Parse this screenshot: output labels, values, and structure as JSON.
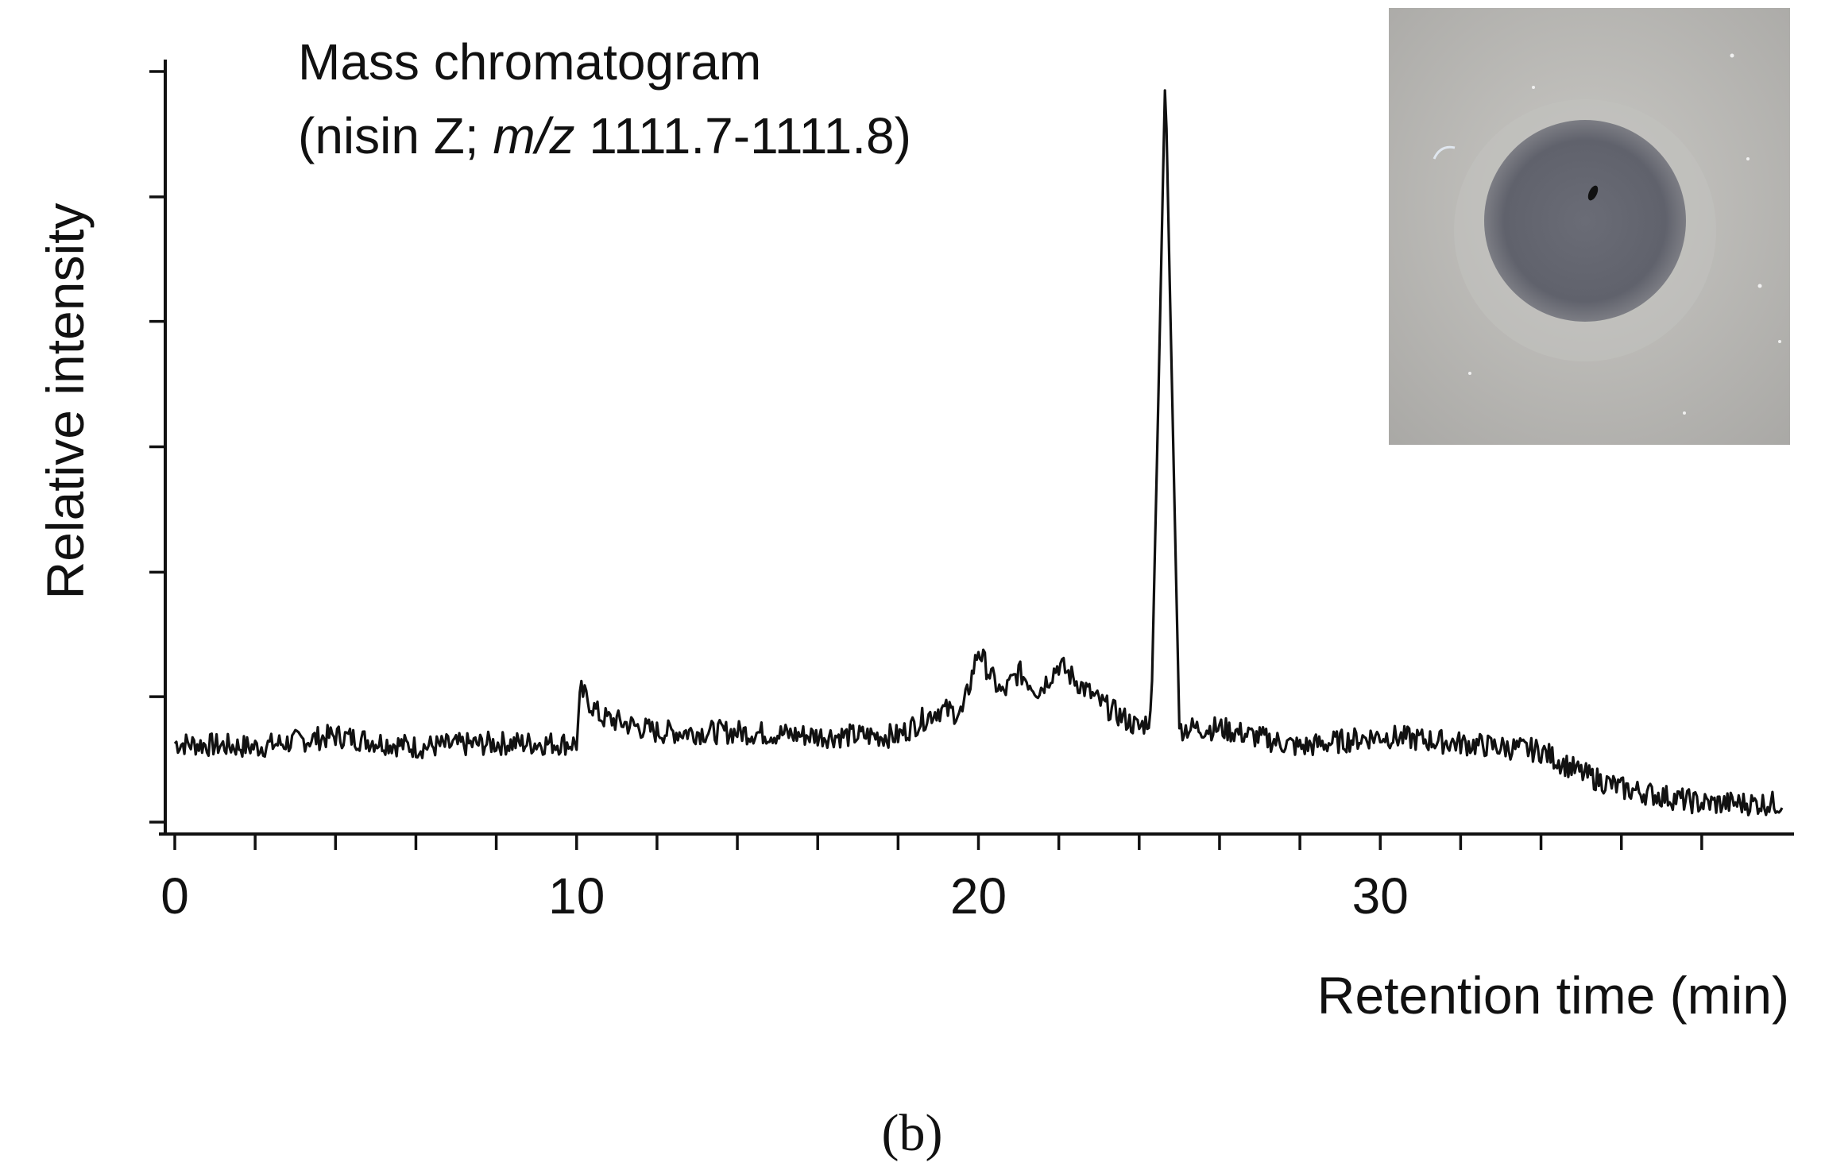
{
  "chart_data": {
    "type": "line",
    "title": "Mass chromatogram",
    "subtitle_prefix": "(nisin Z; ",
    "subtitle_italic": "m/z",
    "subtitle_suffix": " 1111.7-1111.8)",
    "xlabel": "Retention time (min)",
    "ylabel": "Relative intensity",
    "xlim": [
      0,
      40
    ],
    "ylim": [
      0,
      100
    ],
    "x_tick_labels": [
      {
        "value": 0,
        "label": "0"
      },
      {
        "value": 10,
        "label": "10"
      },
      {
        "value": 20,
        "label": "20"
      },
      {
        "value": 30,
        "label": "30"
      }
    ],
    "x_minor_step": 2,
    "y_ticks": [
      0,
      16.7,
      33.3,
      50,
      66.7,
      83.3,
      100
    ],
    "series": [
      {
        "name": "nisin Z (m/z 1111.7-1111.8)",
        "points": [
          [
            0.0,
            10.5
          ],
          [
            2.0,
            10.0
          ],
          [
            4.0,
            11.5
          ],
          [
            6.0,
            10.0
          ],
          [
            8.0,
            10.5
          ],
          [
            10.0,
            10.5
          ],
          [
            10.1,
            17.5
          ],
          [
            10.6,
            14.0
          ],
          [
            12.0,
            12.0
          ],
          [
            14.0,
            12.0
          ],
          [
            16.0,
            11.5
          ],
          [
            18.0,
            11.5
          ],
          [
            19.0,
            15.0
          ],
          [
            19.6,
            14.5
          ],
          [
            20.0,
            23.0
          ],
          [
            20.3,
            19.5
          ],
          [
            20.6,
            17.0
          ],
          [
            21.0,
            20.0
          ],
          [
            21.5,
            17.5
          ],
          [
            22.0,
            21.0
          ],
          [
            23.0,
            16.0
          ],
          [
            24.0,
            12.5
          ],
          [
            24.3,
            14.0
          ],
          [
            24.5,
            62.0
          ],
          [
            24.65,
            100.0
          ],
          [
            24.8,
            62.0
          ],
          [
            25.0,
            12.5
          ],
          [
            26.0,
            12.5
          ],
          [
            28.0,
            10.0
          ],
          [
            30.0,
            11.5
          ],
          [
            32.0,
            10.5
          ],
          [
            34.0,
            9.5
          ],
          [
            35.0,
            6.5
          ],
          [
            36.0,
            4.5
          ],
          [
            38.0,
            2.5
          ],
          [
            40.0,
            2.5
          ]
        ]
      }
    ]
  },
  "figure": {
    "panel_label": "(b)",
    "inset_description": "agar plate with clear inhibition zone"
  }
}
